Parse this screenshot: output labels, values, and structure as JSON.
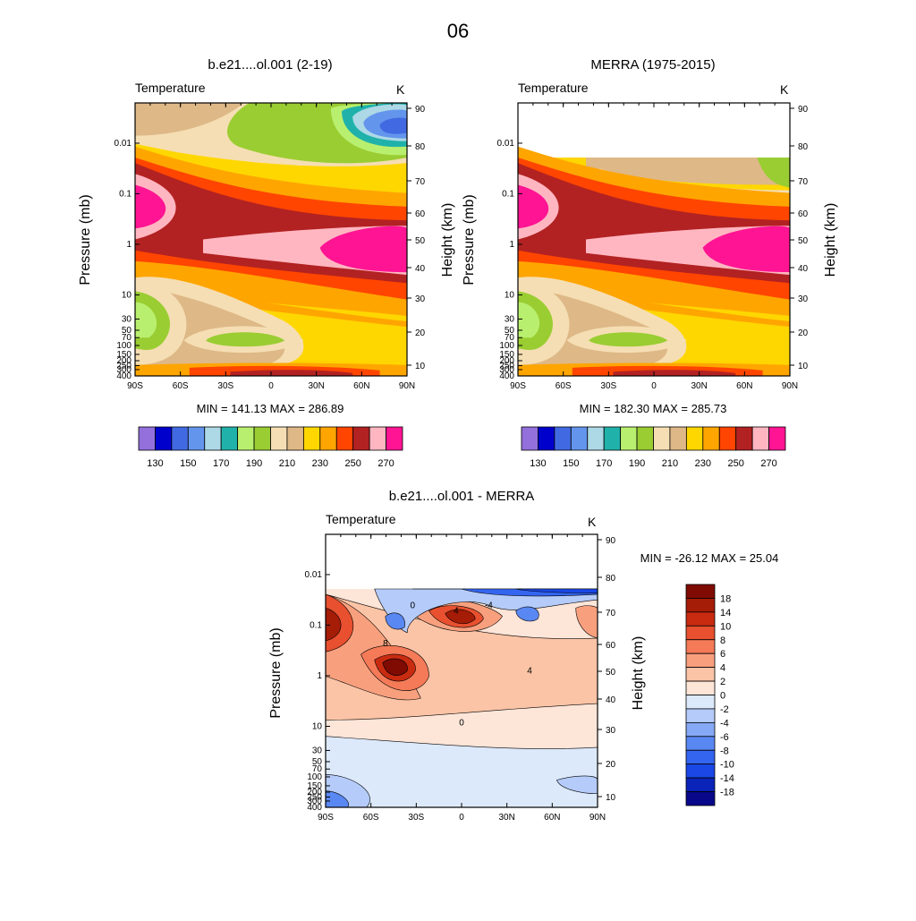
{
  "page_title": "06",
  "colors": {
    "abs_levels": [
      "#9370db",
      "#0000cd",
      "#4169e1",
      "#6495ed",
      "#add8e6",
      "#20b2aa",
      "#b9ef6e",
      "#9acd32",
      "#f5deb3",
      "#deb887",
      "#ffd700",
      "#ffa500",
      "#ff4500",
      "#b22222",
      "#ffb6c1",
      "#ff1493"
    ],
    "diff_levels": [
      "#08088a",
      "#0a23b8",
      "#1a47e6",
      "#3465f0",
      "#5a88f2",
      "#86a9f5",
      "#b5cbf9",
      "#dce9fb",
      "#fde5d8",
      "#fbc4a6",
      "#f8a07e",
      "#f47a58",
      "#e8502f",
      "#c92b10",
      "#a51c07",
      "#7f0b03"
    ]
  },
  "chart_data": [
    {
      "type": "heatmap",
      "title": "b.e21....ol.001 (2-19)",
      "variable": "Temperature",
      "units": "K",
      "ylabel": "Pressure (mb)",
      "y2label": "Height (km)",
      "x_ticks": [
        "90S",
        "60S",
        "30S",
        "0",
        "30N",
        "60N",
        "90N"
      ],
      "p_ticks": [
        "0.01",
        "0.1",
        "1",
        "10",
        "30",
        "50",
        "70",
        "100",
        "150",
        "200",
        "250",
        "300",
        "400"
      ],
      "h_ticks": [
        "90",
        "80",
        "70",
        "60",
        "50",
        "40",
        "30",
        "20",
        "10"
      ],
      "stats": "MIN = 141.13  MAX = 286.89",
      "colorbar_labels": [
        "130",
        "150",
        "170",
        "190",
        "210",
        "230",
        "250",
        "270"
      ],
      "min": 141.13,
      "max": 286.89
    },
    {
      "type": "heatmap",
      "title": "MERRA (1975-2015)",
      "variable": "Temperature",
      "units": "K",
      "ylabel": "Pressure (mb)",
      "y2label": "Height (km)",
      "x_ticks": [
        "90S",
        "60S",
        "30S",
        "0",
        "30N",
        "60N",
        "90N"
      ],
      "p_ticks": [
        "0.01",
        "0.1",
        "1",
        "10",
        "30",
        "50",
        "70",
        "100",
        "150",
        "200",
        "250",
        "300",
        "400"
      ],
      "h_ticks": [
        "90",
        "80",
        "70",
        "60",
        "50",
        "40",
        "30",
        "20",
        "10"
      ],
      "stats": "MIN = 182.30  MAX = 285.73",
      "colorbar_labels": [
        "130",
        "150",
        "170",
        "190",
        "210",
        "230",
        "250",
        "270"
      ],
      "min": 182.3,
      "max": 285.73
    },
    {
      "type": "heatmap",
      "title": "b.e21....ol.001 - MERRA",
      "variable": "Temperature",
      "units": "K",
      "ylabel": "Pressure (mb)",
      "y2label": "Height (km)",
      "x_ticks": [
        "90S",
        "60S",
        "30S",
        "0",
        "30N",
        "60N",
        "90N"
      ],
      "p_ticks": [
        "0.01",
        "0.1",
        "1",
        "10",
        "30",
        "50",
        "70",
        "100",
        "150",
        "200",
        "250",
        "300",
        "400"
      ],
      "h_ticks": [
        "90",
        "80",
        "70",
        "60",
        "50",
        "40",
        "30",
        "20",
        "10"
      ],
      "stats": "MIN = -26.12  MAX =  25.04",
      "colorbar_labels": [
        "18",
        "14",
        "10",
        "8",
        "6",
        "4",
        "2",
        "0",
        "-2",
        "-4",
        "-6",
        "-8",
        "-10",
        "-14",
        "-18"
      ],
      "contour_labels": [
        "0",
        "4",
        "8",
        "-4",
        "0",
        "4"
      ],
      "min": -26.12,
      "max": 25.04
    }
  ]
}
